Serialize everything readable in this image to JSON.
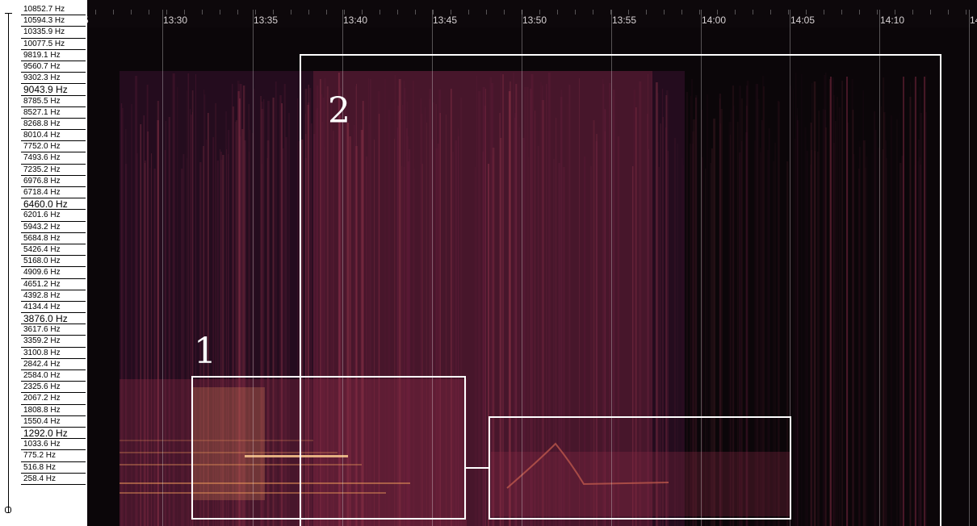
{
  "frequency_axis": {
    "labels": [
      {
        "text": "10852.7 Hz",
        "major": false
      },
      {
        "text": "10594.3 Hz",
        "major": false
      },
      {
        "text": "10335.9 Hz",
        "major": false
      },
      {
        "text": "10077.5 Hz",
        "major": false
      },
      {
        "text": "9819.1 Hz",
        "major": false
      },
      {
        "text": "9560.7 Hz",
        "major": false
      },
      {
        "text": "9302.3 Hz",
        "major": false
      },
      {
        "text": "9043.9 Hz",
        "major": true
      },
      {
        "text": "8785.5 Hz",
        "major": false
      },
      {
        "text": "8527.1 Hz",
        "major": false
      },
      {
        "text": "8268.8 Hz",
        "major": false
      },
      {
        "text": "8010.4 Hz",
        "major": false
      },
      {
        "text": "7752.0 Hz",
        "major": false
      },
      {
        "text": "7493.6 Hz",
        "major": false
      },
      {
        "text": "7235.2 Hz",
        "major": false
      },
      {
        "text": "6976.8 Hz",
        "major": false
      },
      {
        "text": "6718.4 Hz",
        "major": false
      },
      {
        "text": "6460.0 Hz",
        "major": true
      },
      {
        "text": "6201.6 Hz",
        "major": false
      },
      {
        "text": "5943.2 Hz",
        "major": false
      },
      {
        "text": "5684.8 Hz",
        "major": false
      },
      {
        "text": "5426.4 Hz",
        "major": false
      },
      {
        "text": "5168.0 Hz",
        "major": false
      },
      {
        "text": "4909.6 Hz",
        "major": false
      },
      {
        "text": "4651.2 Hz",
        "major": false
      },
      {
        "text": "4392.8 Hz",
        "major": false
      },
      {
        "text": "4134.4 Hz",
        "major": false
      },
      {
        "text": "3876.0 Hz",
        "major": true
      },
      {
        "text": "3617.6 Hz",
        "major": false
      },
      {
        "text": "3359.2 Hz",
        "major": false
      },
      {
        "text": "3100.8 Hz",
        "major": false
      },
      {
        "text": "2842.4 Hz",
        "major": false
      },
      {
        "text": "2584.0 Hz",
        "major": false
      },
      {
        "text": "2325.6 Hz",
        "major": false
      },
      {
        "text": "2067.2 Hz",
        "major": false
      },
      {
        "text": "1808.8 Hz",
        "major": false
      },
      {
        "text": "1550.4 Hz",
        "major": false
      },
      {
        "text": "1292.0 Hz",
        "major": true
      },
      {
        "text": "1033.6 Hz",
        "major": false
      },
      {
        "text": "775.2 Hz",
        "major": false
      },
      {
        "text": "516.8 Hz",
        "major": false
      },
      {
        "text": "258.4 Hz",
        "major": false
      }
    ]
  },
  "time_axis": {
    "labels": [
      "5",
      "13:30",
      "13:35",
      "13:40",
      "13:45",
      "13:50",
      "13:55",
      "14:00",
      "14:05",
      "14:10",
      "14:1"
    ]
  },
  "annotations": {
    "region_1_label": "1",
    "region_2_label": "2"
  },
  "colors": {
    "background": "#0b0609",
    "energy_low": "#3a1230",
    "energy_mid": "#8a2a45",
    "energy_high": "#e8955a",
    "annotation": "#ffffff"
  }
}
